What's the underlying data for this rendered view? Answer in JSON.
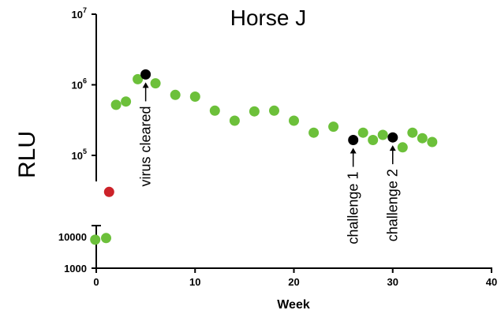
{
  "chart_data": {
    "type": "scatter",
    "title": "Horse J",
    "xlabel": "Week",
    "ylabel": "RLU",
    "xlim": [
      0,
      40
    ],
    "x_ticks": [
      {
        "value": 0,
        "label": "0"
      },
      {
        "value": 10,
        "label": "10"
      },
      {
        "value": 20,
        "label": "20"
      },
      {
        "value": 30,
        "label": "30"
      },
      {
        "value": 40,
        "label": "40"
      }
    ],
    "y_scale": "log, broken axis",
    "y_ticks_lower": [
      {
        "value": 1000,
        "label": "1000"
      },
      {
        "value": 10000,
        "label": "10000"
      }
    ],
    "y_ticks_upper": [
      {
        "base": "10",
        "exp": "5",
        "value": 100000
      },
      {
        "base": "10",
        "exp": "6",
        "value": 1000000
      },
      {
        "base": "10",
        "exp": "7",
        "value": 10000000
      }
    ],
    "grid": false,
    "colors": {
      "measurement": "#6cc03a",
      "highlight": "#000000",
      "outlier": "#cc2229"
    },
    "points": [
      {
        "x": -0.1,
        "y": 8000,
        "kind": "measurement"
      },
      {
        "x": 1.0,
        "y": 9000,
        "kind": "measurement"
      },
      {
        "x": 1.3,
        "y": 35000,
        "kind": "outlier"
      },
      {
        "x": 2.0,
        "y": 520000,
        "kind": "measurement"
      },
      {
        "x": 3.0,
        "y": 580000,
        "kind": "measurement"
      },
      {
        "x": 4.2,
        "y": 1200000,
        "kind": "measurement"
      },
      {
        "x": 5.0,
        "y": 1400000,
        "kind": "highlight"
      },
      {
        "x": 6.0,
        "y": 1050000,
        "kind": "measurement"
      },
      {
        "x": 8.0,
        "y": 720000,
        "kind": "measurement"
      },
      {
        "x": 10.0,
        "y": 680000,
        "kind": "measurement"
      },
      {
        "x": 12.0,
        "y": 430000,
        "kind": "measurement"
      },
      {
        "x": 14.0,
        "y": 310000,
        "kind": "measurement"
      },
      {
        "x": 16.0,
        "y": 420000,
        "kind": "measurement"
      },
      {
        "x": 18.0,
        "y": 430000,
        "kind": "measurement"
      },
      {
        "x": 20.0,
        "y": 310000,
        "kind": "measurement"
      },
      {
        "x": 22.0,
        "y": 210000,
        "kind": "measurement"
      },
      {
        "x": 24.0,
        "y": 255000,
        "kind": "measurement"
      },
      {
        "x": 26.0,
        "y": 165000,
        "kind": "highlight"
      },
      {
        "x": 27.0,
        "y": 210000,
        "kind": "measurement"
      },
      {
        "x": 28.0,
        "y": 165000,
        "kind": "measurement"
      },
      {
        "x": 29.0,
        "y": 195000,
        "kind": "measurement"
      },
      {
        "x": 30.0,
        "y": 180000,
        "kind": "highlight"
      },
      {
        "x": 31.0,
        "y": 130000,
        "kind": "measurement"
      },
      {
        "x": 32.0,
        "y": 210000,
        "kind": "measurement"
      },
      {
        "x": 33.0,
        "y": 175000,
        "kind": "measurement"
      },
      {
        "x": 34.0,
        "y": 155000,
        "kind": "measurement"
      }
    ],
    "annotations": [
      {
        "text": "virus cleared",
        "x": 5.0
      },
      {
        "text": "challenge 1",
        "x": 26.0
      },
      {
        "text": "challenge 2",
        "x": 30.0
      }
    ]
  }
}
